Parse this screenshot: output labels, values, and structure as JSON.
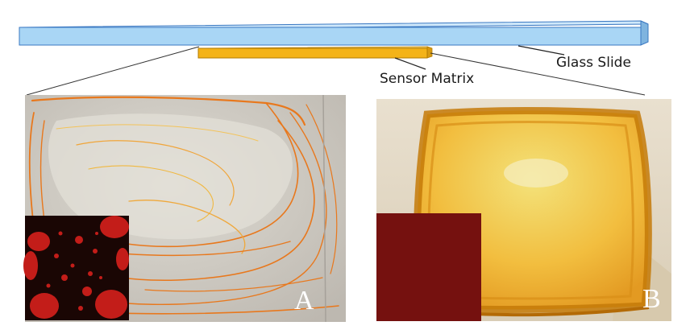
{
  "labels": {
    "glass_slide": "Glass Slide",
    "sensor_matrix": "Sensor Matrix"
  },
  "panels": {
    "a": {
      "letter": "A"
    },
    "b": {
      "letter": "B"
    }
  },
  "colors": {
    "glass_slide": "#a9d6f5",
    "glass_outline": "#3a78c2",
    "sensor_matrix": "#f4b318",
    "sensor_outline": "#b27b00",
    "film_a_bg": "#cfcbc4",
    "film_a_stripes": "#e8781d",
    "film_b_bg": "#f4c24a",
    "film_b_edge": "#c47a08",
    "inset_a_dark": "#1a0604",
    "inset_a_spots": "#c31d19",
    "inset_b": "#7c1310"
  }
}
